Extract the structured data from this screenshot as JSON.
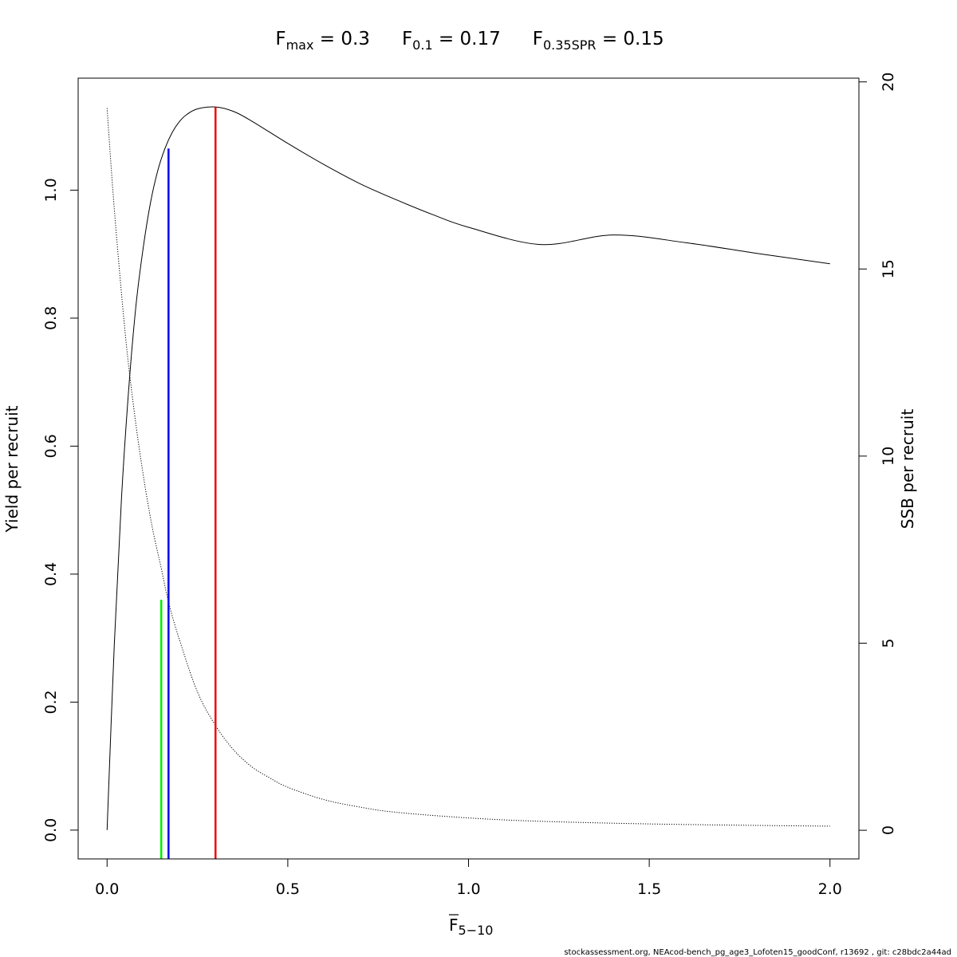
{
  "chart_data": {
    "type": "line",
    "title_terms": [
      {
        "main": "F",
        "sub": "max",
        "rest": " = 0.3"
      },
      {
        "main": "F",
        "sub": "0.1",
        "rest": " = 0.17"
      },
      {
        "main": "F",
        "sub": "0.35SPR",
        "rest": " = 0.15"
      }
    ],
    "xlabel": {
      "main": "F",
      "sub": "5−10"
    },
    "ylabel_left": "Yield per recruit",
    "ylabel_right": "SSB per recruit",
    "xlim": [
      -0.08,
      2.08
    ],
    "ylim_left": [
      -0.045,
      1.175
    ],
    "ylim_right": [
      -0.765,
      20.1
    ],
    "xticks": [
      0,
      0.5,
      1,
      1.5,
      2
    ],
    "xtick_labels": [
      "0.0",
      "0.5",
      "1.0",
      "1.5",
      "2.0"
    ],
    "yticks_left": [
      0,
      0.2,
      0.4,
      0.6,
      0.8,
      1.0
    ],
    "ytick_labels_left": [
      "0.0",
      "0.2",
      "0.4",
      "0.6",
      "0.8",
      "1.0"
    ],
    "yticks_right": [
      0,
      5,
      10,
      15,
      20
    ],
    "ytick_labels_right": [
      "0",
      "5",
      "10",
      "15",
      "20"
    ],
    "series": [
      {
        "axis": "left",
        "style": "solid",
        "x": [
          0,
          0.02,
          0.04,
          0.06,
          0.08,
          0.1,
          0.12,
          0.14,
          0.16,
          0.18,
          0.2,
          0.22,
          0.25,
          0.3,
          0.35,
          0.4,
          0.5,
          0.6,
          0.7,
          0.8,
          0.9,
          1.0,
          1.2,
          1.4,
          1.6,
          1.8,
          2.0
        ],
        "y": [
          0,
          0.29,
          0.52,
          0.69,
          0.82,
          0.91,
          0.98,
          1.03,
          1.065,
          1.09,
          1.107,
          1.118,
          1.127,
          1.13,
          1.123,
          1.108,
          1.073,
          1.04,
          1.01,
          0.985,
          0.962,
          0.942,
          0.915,
          0.93,
          0.918,
          0.901,
          0.885
        ]
      },
      {
        "axis": "right",
        "style": "dotted",
        "x": [
          0,
          0.02,
          0.05,
          0.075,
          0.1,
          0.125,
          0.15,
          0.17,
          0.2,
          0.25,
          0.3,
          0.35,
          0.4,
          0.45,
          0.5,
          0.6,
          0.7,
          0.8,
          1.0,
          1.2,
          1.5,
          1.8,
          2.0
        ],
        "y": [
          19.3,
          16.6,
          13.3,
          11.2,
          9.5,
          8.1,
          7.0,
          6.1,
          5.1,
          3.7,
          2.8,
          2.15,
          1.7,
          1.4,
          1.15,
          0.82,
          0.62,
          0.48,
          0.33,
          0.24,
          0.17,
          0.13,
          0.11
        ]
      }
    ],
    "reference_lines": [
      {
        "label": "F0.35SPR",
        "x": 0.15,
        "y_top": 0.36,
        "color": "#00ee00"
      },
      {
        "label": "F0.1",
        "x": 0.17,
        "y_top": 1.065,
        "color": "#0000ee"
      },
      {
        "label": "Fmax",
        "x": 0.3,
        "y_top": 1.13,
        "color": "#ee0000"
      }
    ]
  },
  "footer": "stockassessment.org, NEAcod-bench_pg_age3_Lofoten15_goodConf, r13692 , git: c28bdc2a44ad"
}
